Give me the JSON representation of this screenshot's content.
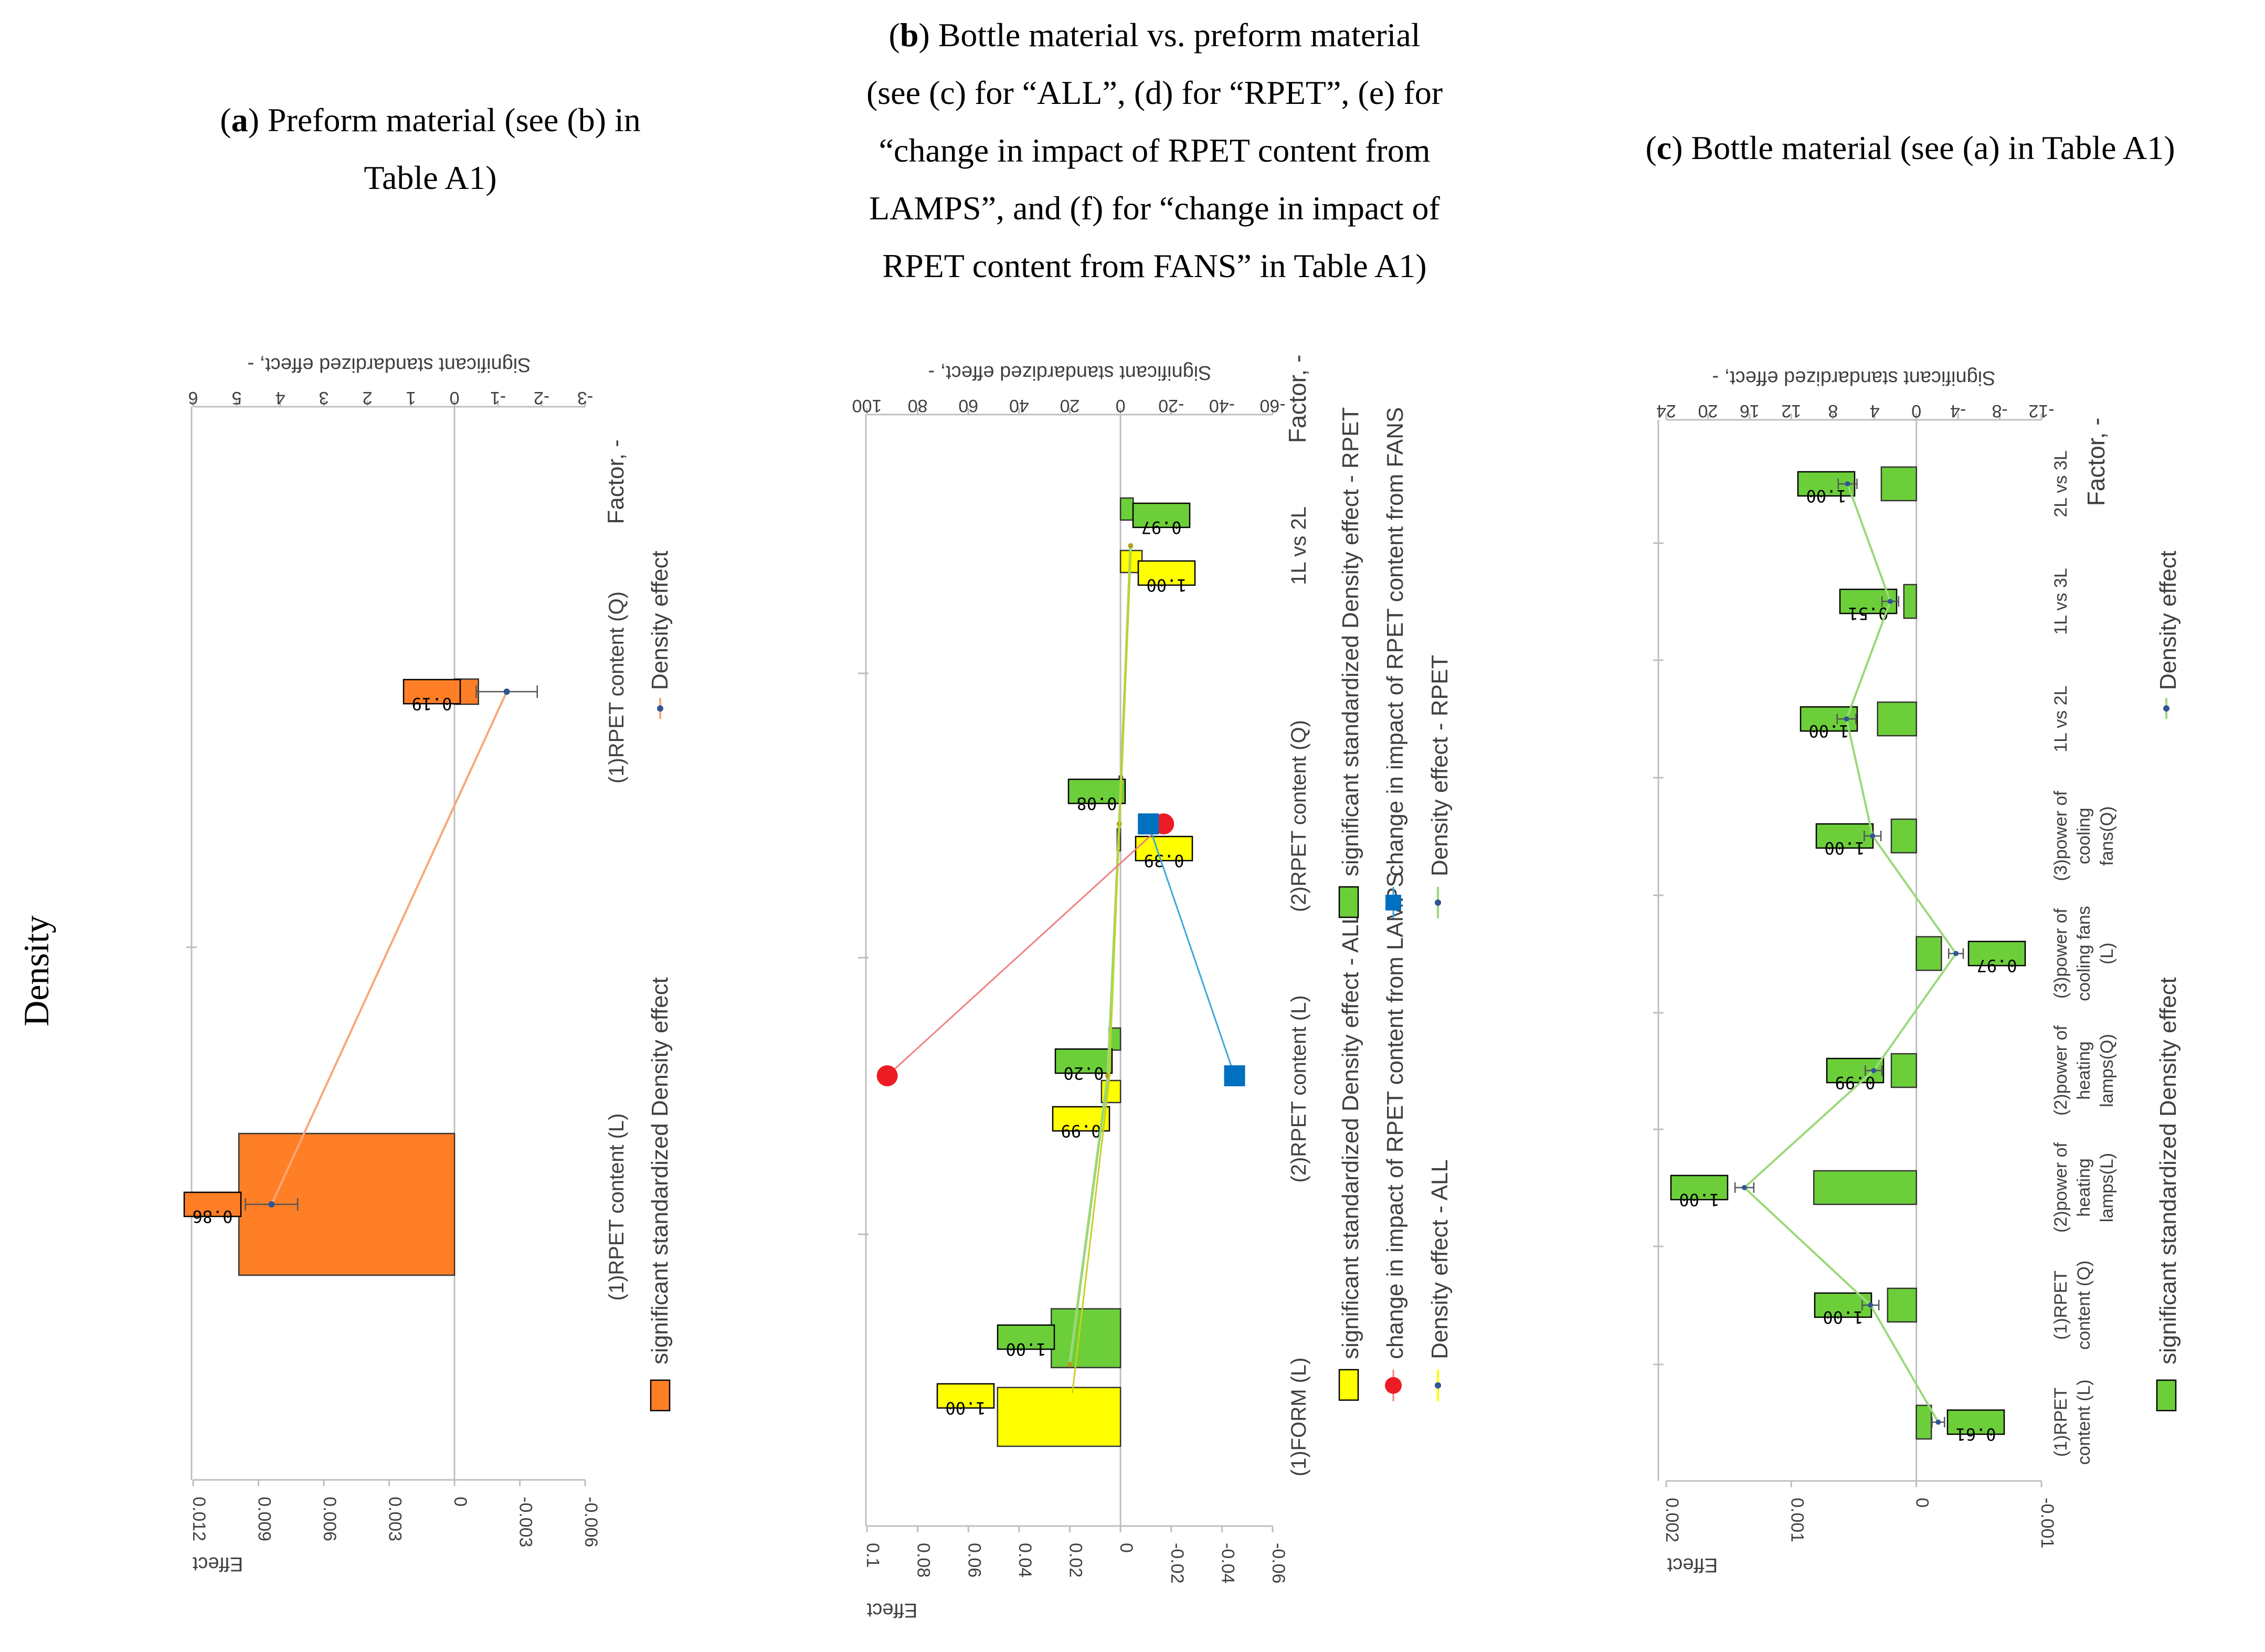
{
  "row_label": "Density",
  "colors": {
    "orange": "#ff7f27",
    "orange_line": "#f7a77a",
    "green": "#6ccf3a",
    "green_line": "#9ad87a",
    "yellow": "#ffff00",
    "red": "#ed1c24",
    "red_line": "#f08080",
    "blue": "#0070c0",
    "blue_line": "#3aa7d8",
    "errbar": "#2f5597",
    "axis": "#bfbfbf",
    "text": "#404040"
  },
  "titles": {
    "a": {
      "letter": "a",
      "lines": [
        "Preform material (see (b) in",
        "Table A1)"
      ]
    },
    "b": {
      "letter": "b",
      "lines": [
        "Bottle material vs. preform material",
        "(see (c) for “ALL”, (d) for “RPET”, (e) for",
        "“change in impact of RPET content from",
        "LAMPS”, and (f) for “change in impact of",
        "RPET content from FANS” in Table A1)"
      ]
    },
    "c": {
      "letter": "c",
      "lines": [
        "Bottle material (see (a) in Table A1)"
      ]
    }
  },
  "chart_data": [
    {
      "id": "a",
      "type": "bar",
      "orientation": "rotated 90° clockwise",
      "categories": [
        "(1)RPET content (L)",
        "(1)RPET content (Q)"
      ],
      "series": [
        {
          "name": "significant standardized Density effect",
          "axis": "effect",
          "values": [
            0.0099,
            -0.0011
          ],
          "labels": [
            "0.86",
            "0.19"
          ],
          "color_key": "orange"
        },
        {
          "name": "Density effect",
          "axis": "standardized",
          "values": [
            4.2,
            -1.2
          ],
          "errors": [
            0.6,
            0.7
          ],
          "color_key": "orange_line"
        }
      ],
      "effect_axis": {
        "label": "Effect",
        "ticks": [
          "0.012",
          "0.009",
          "0.006",
          "0.003",
          "0",
          "-0.003",
          "-0.006"
        ],
        "range": [
          -0.006,
          0.012
        ]
      },
      "std_axis": {
        "label": "Significant standardized effect, -",
        "ticks": [
          "6",
          "5",
          "4",
          "3",
          "2",
          "1",
          "0",
          "-1",
          "-2",
          "-3"
        ],
        "range": [
          -3,
          6
        ]
      },
      "category_axis_label": "Factor, -",
      "legend": [
        "significant standardized Density effect",
        "Density effect"
      ]
    },
    {
      "id": "b",
      "type": "bar",
      "orientation": "rotated 90° clockwise",
      "categories": [
        "(1)FORM (L)",
        "(2)RPET content (L)",
        "(2)RPET content (Q)",
        "1L vs 2L"
      ],
      "series": [
        {
          "name": "significant standardized Density effect - ALL",
          "axis": "effect",
          "values": [
            0.0485,
            0.0075,
            0.0013,
            -0.0085
          ],
          "labels": [
            "1.00",
            "0.99",
            "0.39",
            "1.00"
          ],
          "color_key": "yellow"
        },
        {
          "name": "significant standardized Density effect - RPET",
          "axis": "effect",
          "values": [
            0.0273,
            0.0045,
            0.0005,
            -0.005
          ],
          "labels": [
            "1.00",
            "0.20",
            "0.08",
            "0.97"
          ],
          "color_key": "green"
        },
        {
          "name": "change in impact of RPET content from LAMPS",
          "axis": "standardized",
          "points": [
            [
              1,
              92
            ],
            [
              2,
              -17
            ]
          ],
          "color_key": "red"
        },
        {
          "name": "change in impact of RPET content from FANS",
          "axis": "standardized",
          "points": [
            [
              1,
              -45
            ],
            [
              2,
              -11
            ]
          ],
          "color_key": "blue"
        },
        {
          "name": "Density effect - RPET",
          "axis": "standardized",
          "values": [
            20,
            5,
            0.5,
            -4
          ],
          "color_key": "green_line"
        },
        {
          "name": "Density effect - ALL",
          "axis": "standardized",
          "values": [
            19,
            4.5,
            0.5,
            -4
          ],
          "color_key": "yellow"
        }
      ],
      "effect_axis": {
        "label": "Effect",
        "ticks": [
          "0.1",
          "0.08",
          "0.06",
          "0.04",
          "0.02",
          "0",
          "-0.02",
          "-0.04",
          "-0.06"
        ],
        "range": [
          -0.06,
          0.1
        ]
      },
      "std_axis": {
        "label": "Significant standardized effect, -",
        "ticks": [
          "100",
          "80",
          "60",
          "40",
          "20",
          "0",
          "-20",
          "-40",
          "-60"
        ],
        "range": [
          -60,
          100
        ]
      },
      "category_axis_label": "Factor, -",
      "legend": [
        "significant standardized Density effect - ALL",
        "significant standardized Density effect - RPET",
        "change in impact of RPET content from LAMPS",
        "change in impact of RPET content from FANS",
        "Density effect - ALL",
        "Density effect - RPET"
      ]
    },
    {
      "id": "c",
      "type": "bar",
      "orientation": "rotated 90° clockwise",
      "categories": [
        [
          "(1)RPET",
          "content (L)"
        ],
        [
          "(1)RPET",
          "content (Q)"
        ],
        [
          "(2)power of",
          "heating",
          "lamps(L)"
        ],
        [
          "(2)power of",
          "heating",
          "lamps(Q)"
        ],
        [
          "(3)power of",
          "cooling fans",
          "(L)"
        ],
        [
          "(3)power of",
          "cooling",
          "fans(Q)"
        ],
        [
          "1L vs 2L"
        ],
        [
          "1L vs 3L"
        ],
        [
          "2L vs 3L"
        ]
      ],
      "series": [
        {
          "name": "significant standardized Density effect",
          "axis": "effect",
          "values": [
            -0.00012,
            0.00023,
            0.00082,
            0.0002,
            -0.0002,
            0.0002,
            0.00031,
            0.0001,
            0.00028
          ],
          "labels": [
            "0.61",
            "1.00",
            "1.00",
            "0.99",
            "0.97",
            "1.00",
            "1.00",
            "0.51",
            "1.00"
          ],
          "color_key": "green"
        },
        {
          "name": "Density effect",
          "axis": "standardized",
          "values": [
            -2.1,
            4.4,
            16.5,
            4.1,
            -3.8,
            4.2,
            6.7,
            2.5,
            6.6
          ],
          "errors": [
            0.6,
            0.8,
            0.9,
            0.8,
            0.7,
            0.8,
            0.9,
            0.8,
            0.9
          ],
          "color_key": "green_line"
        }
      ],
      "effect_axis": {
        "label": "Effect",
        "ticks": [
          "0.002",
          "0.001",
          "0",
          "-0.001"
        ],
        "range": [
          -0.001,
          0.002
        ]
      },
      "std_axis": {
        "label": "Significant standardized effect, -",
        "ticks": [
          "24",
          "20",
          "16",
          "12",
          "8",
          "4",
          "0",
          "-4",
          "-8",
          "-12"
        ],
        "range": [
          -12,
          24
        ]
      },
      "category_axis_label": "Factor, -",
      "legend": [
        "significant standardized Density effect",
        "Density effect"
      ]
    }
  ]
}
